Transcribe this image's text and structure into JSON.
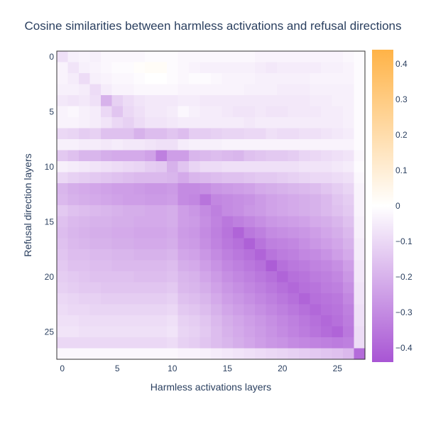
{
  "chart_data": {
    "type": "heatmap",
    "title": "Cosine similarities between harmless activations and refusal directions",
    "xlabel": "Harmless activations layers",
    "ylabel": "Refusal direction layers",
    "x_range": [
      0,
      27
    ],
    "y_range": [
      0,
      27
    ],
    "x_ticks": [
      0,
      5,
      10,
      15,
      20,
      25
    ],
    "y_ticks": [
      0,
      5,
      10,
      15,
      20,
      25
    ],
    "colorbar": {
      "min": -0.44,
      "max": 0.44,
      "ticks": [
        0.4,
        0.3,
        0.2,
        0.1,
        0,
        -0.1,
        -0.2,
        -0.3,
        -0.4
      ],
      "tick_labels": [
        "0.4",
        "0.3",
        "0.2",
        "0.1",
        "0",
        "−0.1",
        "−0.2",
        "−0.3",
        "−0.4"
      ],
      "colors": {
        "negative": "#a855d4",
        "zero": "#ffffff",
        "positive": "#ffb347"
      }
    },
    "values": [
      [
        -0.08,
        -0.04,
        -0.03,
        -0.04,
        -0.02,
        -0.02,
        -0.02,
        -0.02,
        -0.01,
        -0.01,
        -0.01,
        -0.02,
        -0.02,
        -0.02,
        -0.02,
        -0.02,
        -0.02,
        -0.02,
        -0.03,
        -0.03,
        -0.03,
        -0.03,
        -0.03,
        -0.03,
        -0.03,
        -0.03,
        -0.02,
        -0.01
      ],
      [
        -0.03,
        -0.07,
        -0.04,
        -0.03,
        -0.02,
        -0.01,
        -0.01,
        0.01,
        0.02,
        0.02,
        -0.01,
        -0.02,
        -0.03,
        -0.04,
        -0.04,
        -0.04,
        -0.04,
        -0.04,
        -0.05,
        -0.06,
        -0.05,
        -0.05,
        -0.05,
        -0.05,
        -0.04,
        -0.04,
        -0.03,
        -0.01
      ],
      [
        -0.03,
        -0.05,
        -0.09,
        -0.04,
        -0.03,
        -0.02,
        -0.02,
        -0.01,
        0.0,
        0.0,
        -0.01,
        -0.02,
        -0.01,
        -0.01,
        -0.02,
        -0.03,
        -0.03,
        -0.03,
        -0.04,
        -0.04,
        -0.04,
        -0.04,
        -0.04,
        -0.03,
        -0.03,
        -0.03,
        -0.03,
        -0.01
      ],
      [
        -0.04,
        -0.04,
        -0.05,
        -0.09,
        -0.05,
        -0.03,
        -0.03,
        -0.02,
        -0.02,
        -0.02,
        -0.02,
        -0.03,
        -0.03,
        -0.03,
        -0.03,
        -0.03,
        -0.03,
        -0.04,
        -0.04,
        -0.04,
        -0.05,
        -0.05,
        -0.05,
        -0.04,
        -0.04,
        -0.04,
        -0.04,
        -0.01
      ],
      [
        -0.06,
        -0.07,
        -0.06,
        -0.08,
        -0.2,
        -0.12,
        -0.09,
        -0.07,
        -0.06,
        -0.06,
        -0.06,
        -0.05,
        -0.05,
        -0.06,
        -0.06,
        -0.06,
        -0.06,
        -0.06,
        -0.06,
        -0.06,
        -0.06,
        -0.06,
        -0.06,
        -0.05,
        -0.05,
        -0.04,
        -0.04,
        -0.01
      ],
      [
        -0.03,
        -0.02,
        -0.04,
        -0.05,
        -0.1,
        -0.15,
        -0.1,
        -0.08,
        -0.06,
        -0.06,
        -0.05,
        -0.02,
        -0.04,
        -0.05,
        -0.05,
        -0.06,
        -0.07,
        -0.07,
        -0.06,
        -0.07,
        -0.07,
        -0.06,
        -0.06,
        -0.06,
        -0.05,
        -0.05,
        -0.04,
        -0.01
      ],
      [
        -0.03,
        -0.03,
        -0.04,
        -0.05,
        -0.07,
        -0.1,
        -0.12,
        -0.09,
        -0.07,
        -0.07,
        -0.06,
        -0.05,
        -0.05,
        -0.05,
        -0.05,
        -0.05,
        -0.05,
        -0.06,
        -0.05,
        -0.05,
        -0.05,
        -0.05,
        -0.05,
        -0.05,
        -0.05,
        -0.05,
        -0.04,
        -0.01
      ],
      [
        -0.1,
        -0.11,
        -0.13,
        -0.12,
        -0.16,
        -0.16,
        -0.16,
        -0.2,
        -0.17,
        -0.17,
        -0.15,
        -0.17,
        -0.13,
        -0.13,
        -0.12,
        -0.11,
        -0.11,
        -0.1,
        -0.1,
        -0.08,
        -0.09,
        -0.09,
        -0.08,
        -0.08,
        -0.07,
        -0.06,
        -0.05,
        -0.01
      ],
      [
        -0.04,
        -0.04,
        -0.05,
        -0.05,
        -0.06,
        -0.05,
        -0.06,
        -0.06,
        -0.07,
        -0.08,
        -0.08,
        -0.05,
        -0.04,
        -0.04,
        -0.04,
        -0.03,
        -0.03,
        -0.03,
        -0.03,
        -0.03,
        -0.03,
        -0.03,
        -0.03,
        -0.03,
        -0.03,
        -0.03,
        -0.03,
        -0.01
      ],
      [
        -0.14,
        -0.16,
        -0.19,
        -0.19,
        -0.21,
        -0.22,
        -0.22,
        -0.22,
        -0.24,
        -0.33,
        -0.25,
        -0.25,
        -0.19,
        -0.18,
        -0.17,
        -0.18,
        -0.19,
        -0.16,
        -0.15,
        -0.14,
        -0.14,
        -0.13,
        -0.11,
        -0.1,
        -0.09,
        -0.08,
        -0.07,
        -0.02
      ],
      [
        -0.04,
        -0.05,
        -0.06,
        -0.07,
        -0.08,
        -0.09,
        -0.1,
        -0.11,
        -0.13,
        -0.14,
        -0.2,
        -0.15,
        -0.11,
        -0.09,
        -0.09,
        -0.08,
        -0.08,
        -0.08,
        -0.08,
        -0.08,
        -0.08,
        -0.08,
        -0.07,
        -0.07,
        -0.07,
        -0.06,
        -0.05,
        -0.01
      ],
      [
        -0.1,
        -0.12,
        -0.13,
        -0.14,
        -0.15,
        -0.16,
        -0.17,
        -0.18,
        -0.18,
        -0.18,
        -0.19,
        -0.22,
        -0.19,
        -0.18,
        -0.17,
        -0.16,
        -0.16,
        -0.15,
        -0.14,
        -0.14,
        -0.13,
        -0.12,
        -0.11,
        -0.1,
        -0.1,
        -0.09,
        -0.08,
        -0.02
      ],
      [
        -0.19,
        -0.21,
        -0.22,
        -0.23,
        -0.24,
        -0.25,
        -0.25,
        -0.26,
        -0.27,
        -0.27,
        -0.26,
        -0.3,
        -0.3,
        -0.29,
        -0.27,
        -0.26,
        -0.25,
        -0.24,
        -0.22,
        -0.21,
        -0.2,
        -0.19,
        -0.18,
        -0.17,
        -0.15,
        -0.13,
        -0.11,
        -0.03
      ],
      [
        -0.18,
        -0.2,
        -0.21,
        -0.22,
        -0.23,
        -0.24,
        -0.25,
        -0.25,
        -0.26,
        -0.26,
        -0.25,
        -0.3,
        -0.31,
        -0.36,
        -0.31,
        -0.3,
        -0.29,
        -0.28,
        -0.26,
        -0.24,
        -0.23,
        -0.22,
        -0.21,
        -0.2,
        -0.18,
        -0.15,
        -0.13,
        -0.03
      ],
      [
        -0.14,
        -0.16,
        -0.17,
        -0.18,
        -0.19,
        -0.2,
        -0.21,
        -0.21,
        -0.22,
        -0.22,
        -0.21,
        -0.25,
        -0.27,
        -0.3,
        -0.33,
        -0.3,
        -0.29,
        -0.27,
        -0.26,
        -0.24,
        -0.23,
        -0.22,
        -0.21,
        -0.2,
        -0.18,
        -0.16,
        -0.14,
        -0.03
      ],
      [
        -0.16,
        -0.18,
        -0.19,
        -0.2,
        -0.2,
        -0.21,
        -0.21,
        -0.22,
        -0.22,
        -0.22,
        -0.21,
        -0.25,
        -0.26,
        -0.29,
        -0.32,
        -0.35,
        -0.33,
        -0.31,
        -0.29,
        -0.27,
        -0.26,
        -0.25,
        -0.24,
        -0.22,
        -0.21,
        -0.19,
        -0.16,
        -0.04
      ],
      [
        -0.17,
        -0.19,
        -0.2,
        -0.21,
        -0.21,
        -0.22,
        -0.22,
        -0.23,
        -0.23,
        -0.23,
        -0.22,
        -0.26,
        -0.27,
        -0.3,
        -0.33,
        -0.36,
        -0.4,
        -0.35,
        -0.33,
        -0.3,
        -0.29,
        -0.28,
        -0.27,
        -0.25,
        -0.23,
        -0.21,
        -0.18,
        -0.04
      ],
      [
        -0.16,
        -0.18,
        -0.19,
        -0.2,
        -0.2,
        -0.21,
        -0.21,
        -0.22,
        -0.22,
        -0.22,
        -0.21,
        -0.25,
        -0.26,
        -0.29,
        -0.32,
        -0.35,
        -0.37,
        -0.41,
        -0.36,
        -0.33,
        -0.32,
        -0.31,
        -0.29,
        -0.27,
        -0.25,
        -0.23,
        -0.2,
        -0.05
      ],
      [
        -0.15,
        -0.17,
        -0.17,
        -0.18,
        -0.18,
        -0.19,
        -0.19,
        -0.2,
        -0.2,
        -0.2,
        -0.19,
        -0.23,
        -0.24,
        -0.27,
        -0.3,
        -0.33,
        -0.35,
        -0.37,
        -0.4,
        -0.36,
        -0.34,
        -0.33,
        -0.31,
        -0.3,
        -0.28,
        -0.25,
        -0.22,
        -0.05
      ],
      [
        -0.14,
        -0.16,
        -0.16,
        -0.17,
        -0.17,
        -0.18,
        -0.18,
        -0.18,
        -0.18,
        -0.18,
        -0.17,
        -0.21,
        -0.22,
        -0.25,
        -0.28,
        -0.31,
        -0.33,
        -0.35,
        -0.37,
        -0.42,
        -0.37,
        -0.35,
        -0.34,
        -0.32,
        -0.31,
        -0.29,
        -0.25,
        -0.06
      ],
      [
        -0.13,
        -0.14,
        -0.15,
        -0.16,
        -0.16,
        -0.16,
        -0.16,
        -0.17,
        -0.17,
        -0.17,
        -0.16,
        -0.19,
        -0.2,
        -0.23,
        -0.26,
        -0.29,
        -0.31,
        -0.33,
        -0.35,
        -0.37,
        -0.4,
        -0.37,
        -0.36,
        -0.34,
        -0.33,
        -0.31,
        -0.27,
        -0.06
      ],
      [
        -0.12,
        -0.13,
        -0.14,
        -0.14,
        -0.15,
        -0.15,
        -0.15,
        -0.15,
        -0.15,
        -0.15,
        -0.14,
        -0.18,
        -0.19,
        -0.21,
        -0.24,
        -0.27,
        -0.29,
        -0.31,
        -0.33,
        -0.35,
        -0.37,
        -0.39,
        -0.37,
        -0.36,
        -0.34,
        -0.33,
        -0.29,
        -0.07
      ],
      [
        -0.1,
        -0.11,
        -0.12,
        -0.12,
        -0.13,
        -0.13,
        -0.13,
        -0.13,
        -0.13,
        -0.13,
        -0.12,
        -0.16,
        -0.17,
        -0.19,
        -0.22,
        -0.25,
        -0.27,
        -0.29,
        -0.31,
        -0.33,
        -0.35,
        -0.37,
        -0.4,
        -0.37,
        -0.36,
        -0.35,
        -0.31,
        -0.07
      ],
      [
        -0.09,
        -0.1,
        -0.1,
        -0.11,
        -0.11,
        -0.11,
        -0.11,
        -0.11,
        -0.11,
        -0.11,
        -0.1,
        -0.14,
        -0.15,
        -0.17,
        -0.2,
        -0.23,
        -0.25,
        -0.27,
        -0.29,
        -0.31,
        -0.33,
        -0.35,
        -0.37,
        -0.39,
        -0.37,
        -0.36,
        -0.33,
        -0.08
      ],
      [
        -0.08,
        -0.08,
        -0.09,
        -0.09,
        -0.09,
        -0.09,
        -0.09,
        -0.09,
        -0.09,
        -0.09,
        -0.08,
        -0.12,
        -0.13,
        -0.15,
        -0.18,
        -0.21,
        -0.23,
        -0.25,
        -0.27,
        -0.29,
        -0.31,
        -0.33,
        -0.35,
        -0.37,
        -0.39,
        -0.37,
        -0.34,
        -0.08
      ],
      [
        -0.07,
        -0.07,
        -0.08,
        -0.08,
        -0.08,
        -0.08,
        -0.08,
        -0.08,
        -0.08,
        -0.08,
        -0.07,
        -0.11,
        -0.12,
        -0.14,
        -0.17,
        -0.2,
        -0.22,
        -0.24,
        -0.26,
        -0.28,
        -0.3,
        -0.32,
        -0.34,
        -0.36,
        -0.38,
        -0.4,
        -0.35,
        -0.09
      ],
      [
        -0.1,
        -0.1,
        -0.1,
        -0.1,
        -0.1,
        -0.1,
        -0.1,
        -0.1,
        -0.1,
        -0.1,
        -0.09,
        -0.12,
        -0.13,
        -0.15,
        -0.17,
        -0.19,
        -0.21,
        -0.23,
        -0.25,
        -0.27,
        -0.28,
        -0.3,
        -0.31,
        -0.32,
        -0.33,
        -0.34,
        -0.33,
        -0.09
      ],
      [
        -0.02,
        -0.02,
        -0.02,
        -0.02,
        -0.02,
        -0.02,
        -0.02,
        -0.02,
        -0.02,
        -0.02,
        -0.02,
        -0.03,
        -0.03,
        -0.04,
        -0.05,
        -0.06,
        -0.07,
        -0.08,
        -0.09,
        -0.1,
        -0.11,
        -0.12,
        -0.13,
        -0.14,
        -0.15,
        -0.16,
        -0.18,
        -0.38
      ]
    ]
  }
}
